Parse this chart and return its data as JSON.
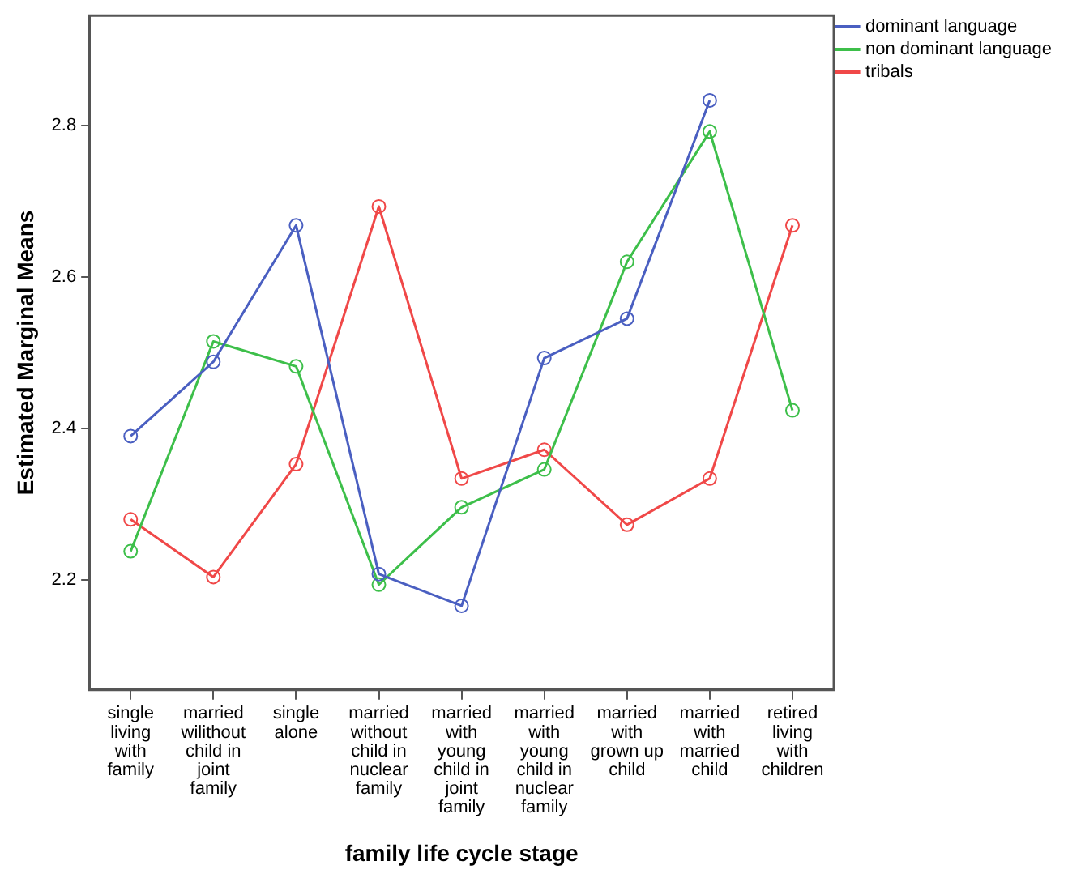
{
  "chart_data": {
    "type": "line",
    "xlabel": "family life cycle stage",
    "ylabel": "Estimated Marginal Means",
    "categories": [
      "single living with family",
      "married wilithout child in joint family",
      "single alone",
      "married without child in nuclear family",
      "married with young child in joint family",
      "married with young child in nuclear family",
      "married with grown up child",
      "married with married child",
      "retired living with children"
    ],
    "series": [
      {
        "name": "dominant language",
        "color": "#4a5fc1",
        "values": [
          2.39,
          2.488,
          2.668,
          2.208,
          2.166,
          2.493,
          2.545,
          2.833,
          null
        ]
      },
      {
        "name": "non dominant language",
        "color": "#3dbf4a",
        "values": [
          2.238,
          2.515,
          2.482,
          2.194,
          2.296,
          2.346,
          2.62,
          2.792,
          2.424
        ]
      },
      {
        "name": "tribals",
        "color": "#f04848",
        "values": [
          2.28,
          2.204,
          2.353,
          2.693,
          2.334,
          2.372,
          2.273,
          2.334,
          2.668
        ]
      }
    ],
    "ylim": [
      2.055,
      2.945
    ],
    "yticks": [
      2.2,
      2.4,
      2.6,
      2.8
    ],
    "grid": false,
    "legend": "top right",
    "marker": "circle",
    "line_style": "solid"
  }
}
